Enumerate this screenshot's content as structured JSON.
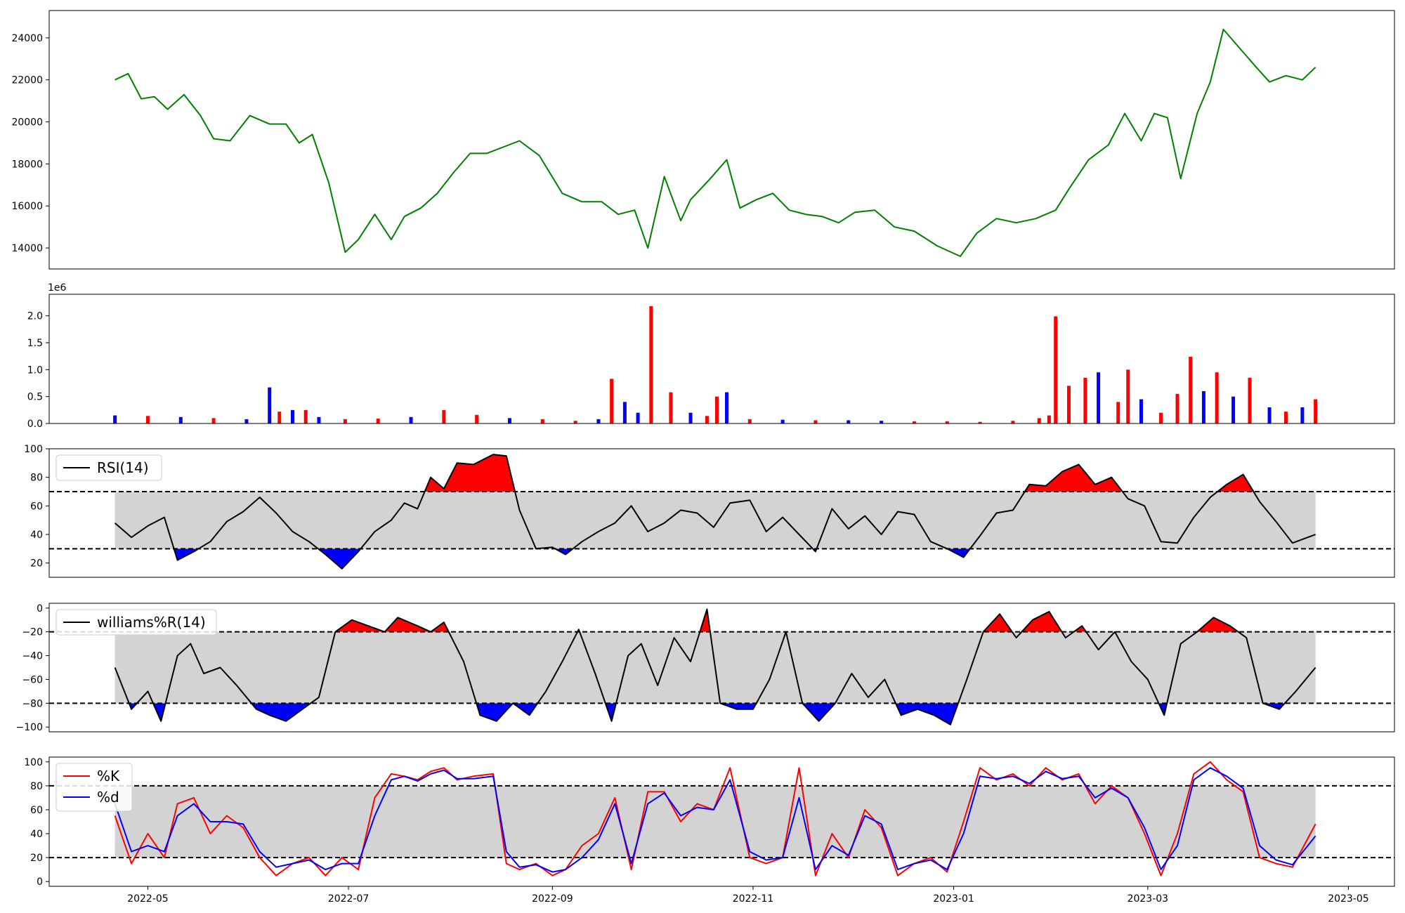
{
  "chart_data": [
    {
      "type": "line",
      "id": "price",
      "title": "",
      "xlabel": "",
      "ylabel": "",
      "xlim": [
        "2022-04-01",
        "2023-05-15"
      ],
      "ylim": [
        13000,
        25300
      ],
      "yticks": [
        14000,
        16000,
        18000,
        20000,
        22000,
        24000
      ],
      "colors": {
        "line": "#008000"
      },
      "x": [
        "2022-04-21",
        "2022-04-25",
        "2022-04-29",
        "2022-05-03",
        "2022-05-07",
        "2022-05-12",
        "2022-05-17",
        "2022-05-21",
        "2022-05-26",
        "2022-06-01",
        "2022-06-07",
        "2022-06-12",
        "2022-06-16",
        "2022-06-20",
        "2022-06-25",
        "2022-06-30",
        "2022-07-04",
        "2022-07-09",
        "2022-07-14",
        "2022-07-18",
        "2022-07-23",
        "2022-07-28",
        "2022-08-02",
        "2022-08-07",
        "2022-08-12",
        "2022-08-17",
        "2022-08-22",
        "2022-08-28",
        "2022-09-04",
        "2022-09-10",
        "2022-09-16",
        "2022-09-21",
        "2022-09-26",
        "2022-09-30",
        "2022-10-05",
        "2022-10-10",
        "2022-10-13",
        "2022-10-19",
        "2022-10-24",
        "2022-10-28",
        "2022-11-02",
        "2022-11-07",
        "2022-11-12",
        "2022-11-17",
        "2022-11-22",
        "2022-11-27",
        "2022-12-02",
        "2022-12-08",
        "2022-12-14",
        "2022-12-20",
        "2022-12-27",
        "2023-01-03",
        "2023-01-08",
        "2023-01-14",
        "2023-01-20",
        "2023-01-26",
        "2023-02-01",
        "2023-02-05",
        "2023-02-11",
        "2023-02-17",
        "2023-02-22",
        "2023-02-27",
        "2023-03-03",
        "2023-03-07",
        "2023-03-11",
        "2023-03-16",
        "2023-03-20",
        "2023-03-24",
        "2023-03-29",
        "2023-04-03",
        "2023-04-07",
        "2023-04-12",
        "2023-04-17",
        "2023-04-21"
      ],
      "values": [
        22000,
        22300,
        21100,
        21200,
        20600,
        21300,
        20300,
        19200,
        19100,
        20300,
        19900,
        19900,
        19000,
        19400,
        17100,
        13800,
        14400,
        15600,
        14400,
        15500,
        15900,
        16600,
        17600,
        18500,
        18500,
        18800,
        19100,
        18400,
        16600,
        16200,
        16200,
        15600,
        15800,
        14000,
        17400,
        15300,
        16300,
        17300,
        18200,
        15900,
        16300,
        16600,
        15800,
        15600,
        15500,
        15200,
        15700,
        15800,
        15000,
        14800,
        14100,
        13600,
        14700,
        15400,
        15200,
        15400,
        15800,
        16800,
        18200,
        18900,
        20400,
        19100,
        20400,
        20200,
        17300,
        20400,
        21900,
        24400,
        23500,
        22600,
        21900,
        22200,
        22000,
        22600
      ]
    },
    {
      "type": "bar",
      "id": "volume",
      "title": "",
      "ylabel": "",
      "scale_note": "1e6",
      "ylim": [
        0,
        2.4
      ],
      "yticks": [
        "0.0",
        "0.5",
        "1.0",
        "1.5",
        "2.0"
      ],
      "colors": {
        "up": "#ff0000",
        "down": "#0000ff"
      },
      "x": [
        "2022-04-21",
        "2022-05-01",
        "2022-05-11",
        "2022-05-21",
        "2022-05-31",
        "2022-06-07",
        "2022-06-10",
        "2022-06-14",
        "2022-06-18",
        "2022-06-22",
        "2022-06-30",
        "2022-07-10",
        "2022-07-20",
        "2022-07-30",
        "2022-08-09",
        "2022-08-19",
        "2022-08-29",
        "2022-09-08",
        "2022-09-15",
        "2022-09-19",
        "2022-09-23",
        "2022-09-27",
        "2022-10-01",
        "2022-10-07",
        "2022-10-13",
        "2022-10-18",
        "2022-10-21",
        "2022-10-24",
        "2022-10-31",
        "2022-11-10",
        "2022-11-20",
        "2022-11-30",
        "2022-12-10",
        "2022-12-20",
        "2022-12-30",
        "2023-01-09",
        "2023-01-19",
        "2023-01-27",
        "2023-01-30",
        "2023-02-01",
        "2023-02-05",
        "2023-02-10",
        "2023-02-14",
        "2023-02-20",
        "2023-02-23",
        "2023-02-27",
        "2023-03-05",
        "2023-03-10",
        "2023-03-14",
        "2023-03-18",
        "2023-03-22",
        "2023-03-27",
        "2023-04-01",
        "2023-04-07",
        "2023-04-12",
        "2023-04-17",
        "2023-04-21"
      ],
      "values": [
        0.15,
        0.14,
        0.12,
        0.1,
        0.08,
        0.67,
        0.22,
        0.25,
        0.25,
        0.12,
        0.08,
        0.09,
        0.12,
        0.25,
        0.16,
        0.1,
        0.08,
        0.05,
        0.08,
        0.83,
        0.4,
        0.2,
        2.18,
        0.58,
        0.2,
        0.14,
        0.5,
        0.58,
        0.08,
        0.07,
        0.06,
        0.06,
        0.05,
        0.04,
        0.04,
        0.03,
        0.05,
        0.1,
        0.15,
        1.99,
        0.7,
        0.85,
        0.95,
        0.4,
        1.0,
        0.45,
        0.2,
        0.55,
        1.24,
        0.6,
        0.95,
        0.5,
        0.85,
        0.3,
        0.22,
        0.3,
        0.45
      ],
      "direction": [
        "down",
        "up",
        "down",
        "up",
        "down",
        "down",
        "up",
        "down",
        "up",
        "down",
        "up",
        "up",
        "down",
        "up",
        "up",
        "down",
        "up",
        "up",
        "down",
        "up",
        "down",
        "down",
        "up",
        "up",
        "down",
        "up",
        "up",
        "down",
        "up",
        "down",
        "up",
        "down",
        "down",
        "up",
        "up",
        "up",
        "up",
        "up",
        "up",
        "up",
        "up",
        "up",
        "down",
        "up",
        "up",
        "down",
        "up",
        "up",
        "up",
        "down",
        "up",
        "down",
        "up",
        "down",
        "up",
        "down",
        "up"
      ]
    },
    {
      "type": "line",
      "id": "rsi",
      "ylim": [
        10,
        100
      ],
      "yticks": [
        20,
        40,
        60,
        80,
        100
      ],
      "thresholds": [
        30,
        70
      ],
      "legend": [
        "RSI(14)"
      ],
      "legend_position": "upper-left",
      "colors": {
        "line": "#000000",
        "band": "#d3d3d3",
        "overbought": "#ff0000",
        "oversold": "#0000ff"
      },
      "x": [
        "2022-04-21",
        "2022-04-26",
        "2022-05-01",
        "2022-05-06",
        "2022-05-10",
        "2022-05-15",
        "2022-05-20",
        "2022-05-25",
        "2022-05-30",
        "2022-06-04",
        "2022-06-09",
        "2022-06-14",
        "2022-06-19",
        "2022-06-24",
        "2022-06-29",
        "2022-07-04",
        "2022-07-09",
        "2022-07-14",
        "2022-07-18",
        "2022-07-22",
        "2022-07-26",
        "2022-07-30",
        "2022-08-03",
        "2022-08-08",
        "2022-08-14",
        "2022-08-18",
        "2022-08-22",
        "2022-08-27",
        "2022-09-01",
        "2022-09-05",
        "2022-09-10",
        "2022-09-15",
        "2022-09-20",
        "2022-09-25",
        "2022-09-30",
        "2022-10-05",
        "2022-10-10",
        "2022-10-15",
        "2022-10-20",
        "2022-10-25",
        "2022-10-31",
        "2022-11-05",
        "2022-11-10",
        "2022-11-15",
        "2022-11-20",
        "2022-11-25",
        "2022-11-30",
        "2022-12-05",
        "2022-12-10",
        "2022-12-15",
        "2022-12-20",
        "2022-12-25",
        "2022-12-30",
        "2023-01-04",
        "2023-01-09",
        "2023-01-14",
        "2023-01-19",
        "2023-01-24",
        "2023-01-29",
        "2023-02-03",
        "2023-02-08",
        "2023-02-13",
        "2023-02-18",
        "2023-02-23",
        "2023-02-28",
        "2023-03-05",
        "2023-03-10",
        "2023-03-15",
        "2023-03-20",
        "2023-03-25",
        "2023-03-30",
        "2023-04-04",
        "2023-04-09",
        "2023-04-14",
        "2023-04-21"
      ],
      "values": [
        48,
        38,
        46,
        52,
        22,
        28,
        35,
        49,
        56,
        66,
        55,
        42,
        35,
        26,
        16,
        28,
        42,
        50,
        62,
        58,
        80,
        72,
        90,
        89,
        96,
        95,
        57,
        30,
        31,
        26,
        35,
        42,
        48,
        60,
        42,
        48,
        57,
        55,
        45,
        62,
        64,
        42,
        52,
        40,
        28,
        58,
        44,
        53,
        40,
        56,
        54,
        35,
        30,
        24,
        39,
        55,
        57,
        75,
        74,
        84,
        89,
        75,
        80,
        65,
        60,
        35,
        34,
        52,
        66,
        75,
        82,
        63,
        49,
        34,
        40
      ]
    },
    {
      "type": "line",
      "id": "williams_r",
      "ylim": [
        -104,
        4
      ],
      "yticks": [
        0,
        -20,
        -40,
        -60,
        -80,
        -100
      ],
      "thresholds": [
        -20,
        -80
      ],
      "legend": [
        "williams%R(14)"
      ],
      "legend_position": "upper-left",
      "colors": {
        "line": "#000000",
        "band": "#d3d3d3",
        "overbought": "#ff0000",
        "oversold": "#0000ff"
      },
      "x": [
        "2022-04-21",
        "2022-04-26",
        "2022-05-01",
        "2022-05-05",
        "2022-05-10",
        "2022-05-14",
        "2022-05-18",
        "2022-05-23",
        "2022-05-28",
        "2022-06-03",
        "2022-06-07",
        "2022-06-12",
        "2022-06-17",
        "2022-06-22",
        "2022-06-27",
        "2022-07-02",
        "2022-07-07",
        "2022-07-12",
        "2022-07-16",
        "2022-07-22",
        "2022-07-26",
        "2022-07-30",
        "2022-08-05",
        "2022-08-10",
        "2022-08-15",
        "2022-08-20",
        "2022-08-25",
        "2022-08-30",
        "2022-09-04",
        "2022-09-09",
        "2022-09-14",
        "2022-09-19",
        "2022-09-24",
        "2022-09-28",
        "2022-10-03",
        "2022-10-08",
        "2022-10-13",
        "2022-10-18",
        "2022-10-22",
        "2022-10-27",
        "2022-11-01",
        "2022-11-06",
        "2022-11-11",
        "2022-11-16",
        "2022-11-21",
        "2022-11-26",
        "2022-12-01",
        "2022-12-06",
        "2022-12-11",
        "2022-12-16",
        "2022-12-21",
        "2022-12-26",
        "2022-12-31",
        "2023-01-05",
        "2023-01-10",
        "2023-01-15",
        "2023-01-20",
        "2023-01-25",
        "2023-01-30",
        "2023-02-04",
        "2023-02-09",
        "2023-02-14",
        "2023-02-19",
        "2023-02-24",
        "2023-03-01",
        "2023-03-06",
        "2023-03-11",
        "2023-03-16",
        "2023-03-21",
        "2023-03-26",
        "2023-03-31",
        "2023-04-05",
        "2023-04-10",
        "2023-04-15",
        "2023-04-21"
      ],
      "values": [
        -50,
        -85,
        -70,
        -95,
        -40,
        -30,
        -55,
        -50,
        -65,
        -85,
        -90,
        -95,
        -85,
        -75,
        -20,
        -10,
        -15,
        -20,
        -8,
        -15,
        -20,
        -12,
        -45,
        -90,
        -95,
        -80,
        -90,
        -70,
        -45,
        -18,
        -55,
        -95,
        -40,
        -30,
        -65,
        -25,
        -45,
        -1,
        -80,
        -85,
        -85,
        -60,
        -20,
        -80,
        -95,
        -80,
        -55,
        -75,
        -60,
        -90,
        -85,
        -90,
        -98,
        -60,
        -20,
        -5,
        -25,
        -10,
        -3,
        -25,
        -15,
        -35,
        -20,
        -45,
        -60,
        -90,
        -30,
        -20,
        -8,
        -15,
        -25,
        -80,
        -85,
        -70,
        -50
      ]
    },
    {
      "type": "line",
      "id": "stochastic",
      "ylim": [
        -4,
        104
      ],
      "yticks": [
        0,
        20,
        40,
        60,
        80,
        100
      ],
      "thresholds": [
        20,
        80
      ],
      "legend": [
        "%K",
        "%d"
      ],
      "legend_position": "upper-left",
      "colors": {
        "band": "#d3d3d3",
        "k": "#ff0000",
        "d": "#0000ff"
      },
      "x": [
        "2022-04-21",
        "2022-04-26",
        "2022-05-01",
        "2022-05-06",
        "2022-05-10",
        "2022-05-15",
        "2022-05-20",
        "2022-05-25",
        "2022-05-30",
        "2022-06-04",
        "2022-06-09",
        "2022-06-14",
        "2022-06-19",
        "2022-06-24",
        "2022-06-29",
        "2022-07-04",
        "2022-07-09",
        "2022-07-14",
        "2022-07-18",
        "2022-07-22",
        "2022-07-26",
        "2022-07-30",
        "2022-08-03",
        "2022-08-08",
        "2022-08-14",
        "2022-08-18",
        "2022-08-22",
        "2022-08-27",
        "2022-09-01",
        "2022-09-05",
        "2022-09-10",
        "2022-09-15",
        "2022-09-20",
        "2022-09-25",
        "2022-09-30",
        "2022-10-05",
        "2022-10-10",
        "2022-10-15",
        "2022-10-20",
        "2022-10-25",
        "2022-10-31",
        "2022-11-05",
        "2022-11-10",
        "2022-11-15",
        "2022-11-20",
        "2022-11-25",
        "2022-11-30",
        "2022-12-05",
        "2022-12-10",
        "2022-12-15",
        "2022-12-20",
        "2022-12-25",
        "2022-12-30",
        "2023-01-04",
        "2023-01-09",
        "2023-01-14",
        "2023-01-19",
        "2023-01-24",
        "2023-01-29",
        "2023-02-03",
        "2023-02-08",
        "2023-02-13",
        "2023-02-18",
        "2023-02-23",
        "2023-02-28",
        "2023-03-05",
        "2023-03-10",
        "2023-03-15",
        "2023-03-20",
        "2023-03-25",
        "2023-03-30",
        "2023-04-04",
        "2023-04-09",
        "2023-04-14",
        "2023-04-21"
      ],
      "series": [
        {
          "name": "%K",
          "values": [
            55,
            15,
            40,
            20,
            65,
            70,
            40,
            55,
            45,
            20,
            5,
            15,
            20,
            5,
            20,
            10,
            70,
            90,
            88,
            85,
            92,
            95,
            85,
            88,
            90,
            15,
            10,
            15,
            5,
            10,
            30,
            40,
            70,
            10,
            75,
            75,
            50,
            65,
            60,
            95,
            20,
            15,
            20,
            95,
            5,
            40,
            20,
            60,
            45,
            5,
            15,
            20,
            8,
            50,
            95,
            85,
            90,
            80,
            95,
            85,
            90,
            65,
            80,
            70,
            40,
            5,
            40,
            90,
            100,
            85,
            75,
            20,
            15,
            12,
            48
          ]
        },
        {
          "name": "%d",
          "values": [
            65,
            25,
            30,
            25,
            55,
            65,
            50,
            50,
            48,
            25,
            12,
            15,
            18,
            10,
            15,
            15,
            55,
            85,
            88,
            84,
            90,
            93,
            86,
            86,
            88,
            25,
            12,
            14,
            8,
            10,
            20,
            35,
            65,
            15,
            65,
            74,
            55,
            62,
            60,
            85,
            25,
            18,
            20,
            70,
            10,
            30,
            22,
            55,
            48,
            10,
            15,
            18,
            10,
            40,
            88,
            86,
            88,
            82,
            92,
            86,
            88,
            70,
            78,
            70,
            45,
            10,
            30,
            85,
            95,
            88,
            78,
            30,
            18,
            14,
            38
          ]
        }
      ]
    }
  ]
}
